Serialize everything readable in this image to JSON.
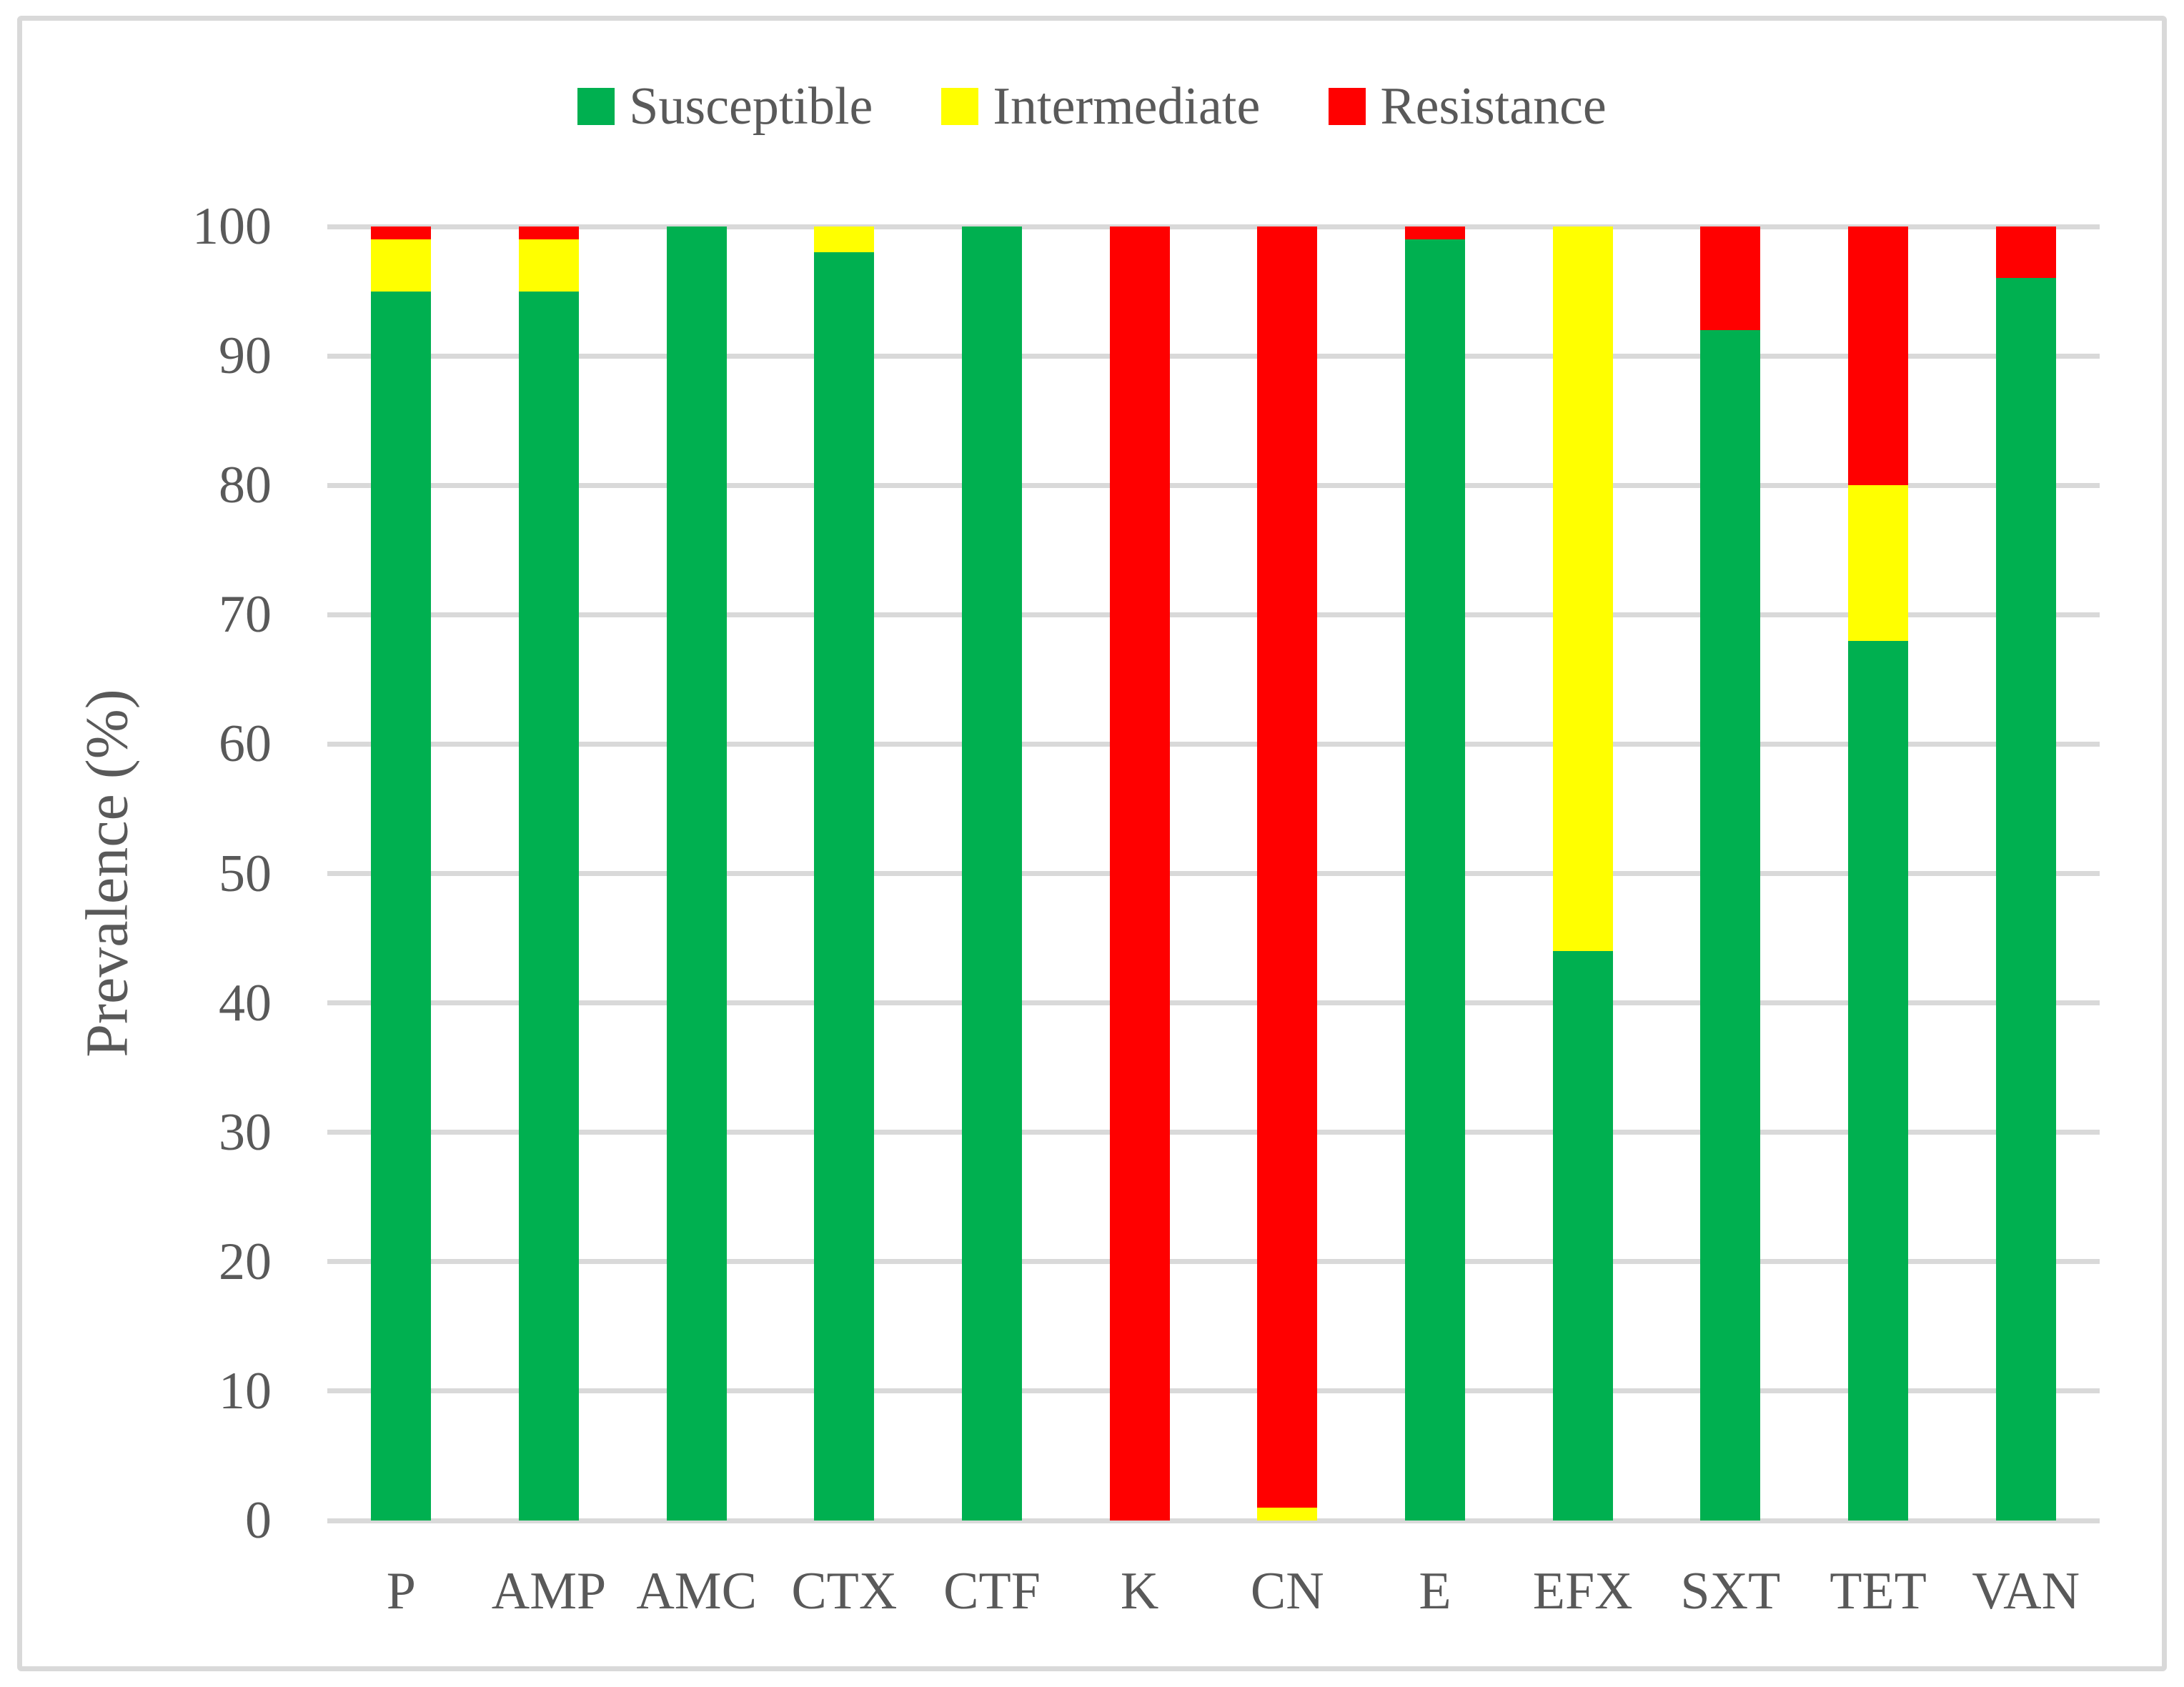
{
  "figure": {
    "background_color": "#ffffff",
    "frame_color": "#d9d9d9",
    "text_color": "#595959",
    "gridline_color": "#d9d9d9"
  },
  "legend": {
    "position": "top",
    "items": [
      {
        "label": "Susceptible",
        "color": "#00B050"
      },
      {
        "label": "Intermediate",
        "color": "#FFFF00"
      },
      {
        "label": "Resistance",
        "color": "#FF0000"
      }
    ]
  },
  "y_axis": {
    "title": "Prevalence (%)",
    "ticks": [
      100,
      90,
      80,
      70,
      60,
      50,
      40,
      30,
      20,
      10,
      0
    ]
  },
  "chart_data": {
    "type": "bar",
    "stacked": true,
    "percent_stacked": true,
    "title": "",
    "xlabel": "",
    "ylabel": "Prevalence (%)",
    "ylim": [
      0,
      100
    ],
    "grid": true,
    "legend_position": "top",
    "categories": [
      "P",
      "AMP",
      "AMC",
      "CTX",
      "CTF",
      "K",
      "CN",
      "E",
      "EFX",
      "SXT",
      "TET",
      "VAN"
    ],
    "series": [
      {
        "name": "Susceptible",
        "color": "#00B050",
        "values": [
          95,
          95,
          100,
          98,
          100,
          0,
          0,
          99,
          44,
          92,
          68,
          96
        ]
      },
      {
        "name": "Intermediate",
        "color": "#FFFF00",
        "values": [
          4,
          4,
          0,
          2,
          0,
          0,
          1,
          0,
          56,
          0,
          12,
          0
        ]
      },
      {
        "name": "Resistance",
        "color": "#FF0000",
        "values": [
          1,
          1,
          0,
          0,
          0,
          100,
          99,
          1,
          0,
          8,
          20,
          4
        ]
      }
    ]
  }
}
